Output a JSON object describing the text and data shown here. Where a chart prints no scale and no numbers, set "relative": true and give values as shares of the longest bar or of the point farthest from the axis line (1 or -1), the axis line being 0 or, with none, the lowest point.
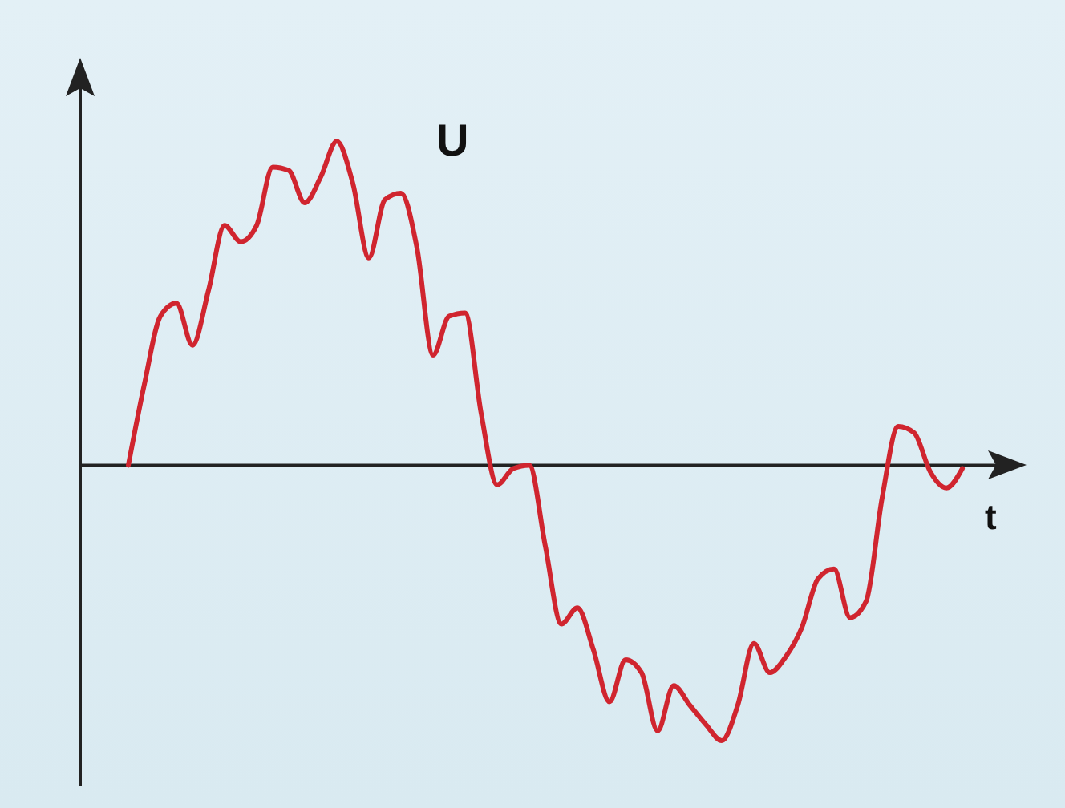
{
  "chart_data": {
    "type": "line",
    "relative": true,
    "ylabel": "U",
    "xlabel": "t",
    "categories": [
      null,
      null,
      null,
      null,
      null,
      null,
      null,
      null,
      null,
      null,
      null,
      null,
      null,
      null,
      null,
      null,
      null,
      null,
      null,
      null,
      null,
      null,
      null,
      null,
      null,
      null,
      null,
      null,
      null,
      null,
      null,
      null,
      null,
      null,
      null,
      null,
      null,
      null,
      null,
      null,
      null,
      null,
      null,
      null,
      null,
      null,
      null,
      null,
      null,
      null,
      null,
      null,
      null
    ],
    "series": [
      {
        "color": "#d0252f",
        "values": [
          0,
          0.25,
          0.46,
          0.5,
          0.37,
          0.54,
          0.74,
          0.69,
          0.74,
          0.92,
          0.91,
          0.81,
          0.89,
          1,
          0.87,
          0.64,
          0.82,
          0.84,
          0.67,
          0.34,
          0.46,
          0.47,
          0.16,
          -0.06,
          -0.01,
          0,
          -0.25,
          -0.49,
          -0.44,
          -0.57,
          -0.73,
          -0.6,
          -0.64,
          -0.82,
          -0.68,
          -0.74,
          -0.8,
          -0.85,
          -0.74,
          -0.55,
          -0.64,
          -0.59,
          -0.5,
          -0.35,
          -0.32,
          -0.47,
          -0.42,
          -0.1,
          0.12,
          0.1,
          -0.02,
          -0.07,
          -0.01
        ]
      }
    ],
    "grid": false,
    "legend": false,
    "marker": "none",
    "line_style": "solid"
  }
}
